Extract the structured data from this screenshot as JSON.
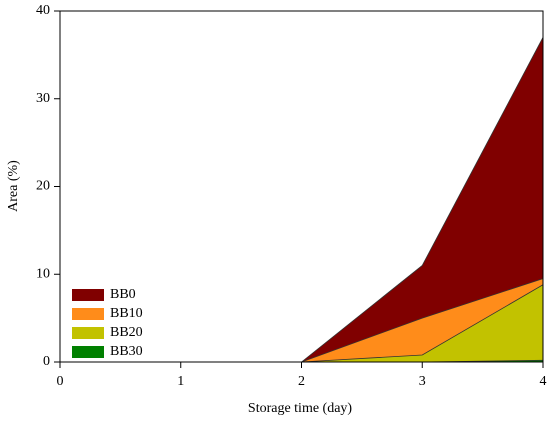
{
  "chart_data": {
    "type": "area",
    "x_label": "Storage time (day)",
    "y_label": "Area (%)",
    "x": [
      0,
      1,
      2,
      3,
      4
    ],
    "series": [
      {
        "name": "BB0",
        "color": "#800000",
        "values": [
          0,
          0,
          0,
          11,
          37
        ]
      },
      {
        "name": "BB10",
        "color": "#ff8c1a",
        "values": [
          0,
          0,
          0,
          5,
          9.5
        ]
      },
      {
        "name": "BB20",
        "color": "#c2c200",
        "values": [
          0,
          0,
          0,
          0.8,
          8.8
        ]
      },
      {
        "name": "BB30",
        "color": "#008000",
        "values": [
          0,
          0,
          0,
          0,
          0.2
        ]
      }
    ],
    "xlim": [
      0,
      4
    ],
    "xticks": [
      0,
      1,
      2,
      3,
      4
    ],
    "ylim": [
      0,
      40
    ],
    "yticks": [
      0,
      10,
      20,
      30,
      40
    ],
    "legend": "lower left"
  }
}
